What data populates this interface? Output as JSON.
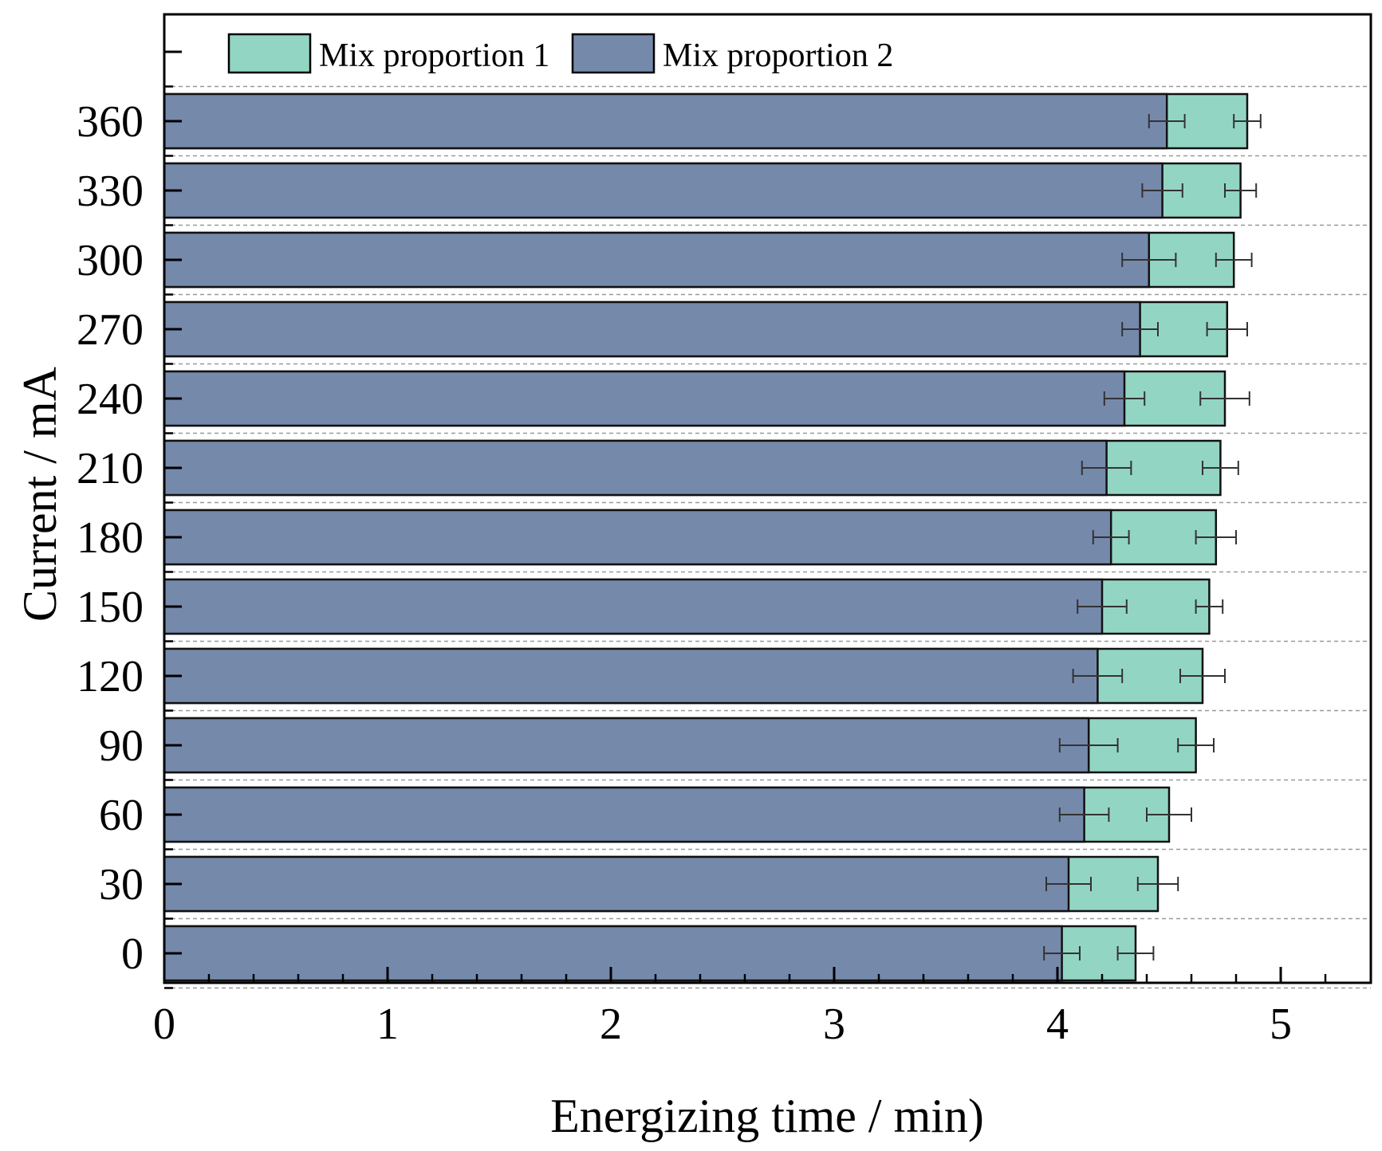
{
  "chart_data": {
    "type": "bar",
    "orientation": "horizontal",
    "layout": "overlapping",
    "title": "",
    "xlabel": "Energizing time / min)",
    "ylabel": "Current / mA",
    "xlim": [
      0,
      5.4
    ],
    "xticks": [
      0,
      1,
      2,
      3,
      4,
      5
    ],
    "xtick_labels": [
      "0",
      "1",
      "2",
      "3",
      "4",
      "5"
    ],
    "categories": [
      "0",
      "30",
      "60",
      "90",
      "120",
      "150",
      "180",
      "210",
      "240",
      "270",
      "300",
      "330",
      "360"
    ],
    "series": [
      {
        "name": "Mix proportion 1",
        "color": "#93d5c3",
        "values": [
          4.35,
          4.45,
          4.5,
          4.62,
          4.65,
          4.68,
          4.71,
          4.73,
          4.75,
          4.76,
          4.79,
          4.82,
          4.85
        ],
        "errors": [
          0.08,
          0.09,
          0.1,
          0.08,
          0.1,
          0.06,
          0.09,
          0.08,
          0.11,
          0.09,
          0.08,
          0.07,
          0.06
        ]
      },
      {
        "name": "Mix proportion 2",
        "color": "#7589ab",
        "values": [
          4.02,
          4.05,
          4.12,
          4.14,
          4.18,
          4.2,
          4.24,
          4.22,
          4.3,
          4.37,
          4.41,
          4.47,
          4.49
        ],
        "errors": [
          0.08,
          0.1,
          0.11,
          0.13,
          0.11,
          0.11,
          0.08,
          0.11,
          0.09,
          0.08,
          0.12,
          0.09,
          0.08
        ]
      }
    ],
    "legend_position": "top-left",
    "grid": "horizontal dashed separators"
  }
}
